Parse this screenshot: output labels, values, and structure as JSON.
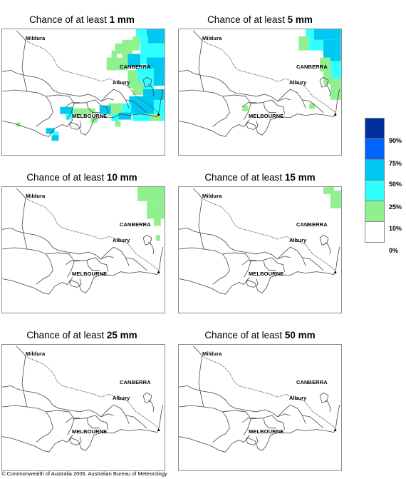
{
  "panels": [
    {
      "prefix": "Chance of at least ",
      "amount": "1 mm"
    },
    {
      "prefix": "Chance of at least ",
      "amount": "5 mm"
    },
    {
      "prefix": "Chance of at least ",
      "amount": "10 mm"
    },
    {
      "prefix": "Chance of at least ",
      "amount": "15 mm"
    },
    {
      "prefix": "Chance of at least ",
      "amount": "25 mm"
    },
    {
      "prefix": "Chance of at least ",
      "amount": "50 mm"
    }
  ],
  "cities": {
    "mildura": "Mildura",
    "canberra": "CANBERRA",
    "albury": "Albury",
    "melbourne": "MELBOURNE"
  },
  "legend": {
    "labels": [
      "90%",
      "75%",
      "50%",
      "25%",
      "10%",
      "0%"
    ],
    "colors": [
      "#00309a",
      "#0064ff",
      "#00c8f0",
      "#30ffff",
      "#90f090",
      "#ffffff"
    ]
  },
  "copyright": "© Commonwealth of Australia 2006, Australian Bureau of Meteorology"
}
